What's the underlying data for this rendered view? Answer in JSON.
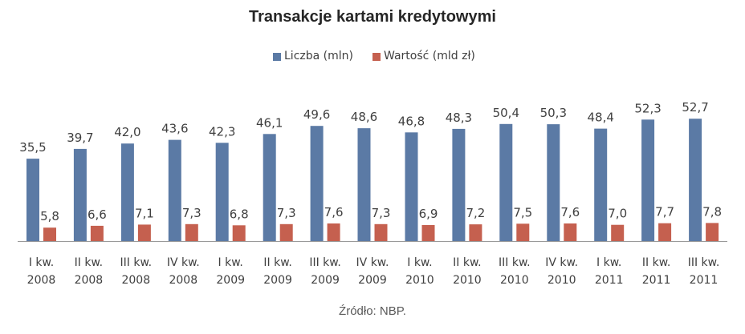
{
  "chart_data": {
    "type": "bar",
    "title": "Transakcje kartami kredytowymi",
    "categories": [
      [
        "I kw.",
        "2008"
      ],
      [
        "II kw.",
        "2008"
      ],
      [
        "III kw.",
        "2008"
      ],
      [
        "IV kw.",
        "2008"
      ],
      [
        "I kw.",
        "2009"
      ],
      [
        "II kw.",
        "2009"
      ],
      [
        "III kw.",
        "2009"
      ],
      [
        "IV kw.",
        "2009"
      ],
      [
        "I kw.",
        "2010"
      ],
      [
        "II kw.",
        "2010"
      ],
      [
        "III kw.",
        "2010"
      ],
      [
        "IV kw.",
        "2010"
      ],
      [
        "I kw.",
        "2011"
      ],
      [
        "II kw.",
        "2011"
      ],
      [
        "III kw.",
        "2011"
      ]
    ],
    "series": [
      {
        "name": "Liczba (mln)",
        "color": "#5b7aa5",
        "values": [
          35.5,
          39.7,
          42.0,
          43.6,
          42.3,
          46.1,
          49.6,
          48.6,
          46.8,
          48.3,
          50.4,
          50.3,
          48.4,
          52.3,
          52.7
        ],
        "labels": [
          "35,5",
          "39,7",
          "42,0",
          "43,6",
          "42,3",
          "46,1",
          "49,6",
          "48,6",
          "46,8",
          "48,3",
          "50,4",
          "50,3",
          "48,4",
          "52,3",
          "52,7"
        ]
      },
      {
        "name": "Wartość (mld zł)",
        "color": "#c5604f",
        "values": [
          5.8,
          6.6,
          7.1,
          7.3,
          6.8,
          7.3,
          7.6,
          7.3,
          6.9,
          7.2,
          7.5,
          7.6,
          7.0,
          7.7,
          7.8
        ],
        "labels": [
          "5,8",
          "6,6",
          "7,1",
          "7,3",
          "6,8",
          "7,3",
          "7,6",
          "7,3",
          "6,9",
          "7,2",
          "7,5",
          "7,6",
          "7,0",
          "7,7",
          "7,8"
        ]
      }
    ],
    "ylim": [
      0,
      60
    ],
    "grid": false,
    "legend_position": "top"
  },
  "source": "Źródło: NBP."
}
